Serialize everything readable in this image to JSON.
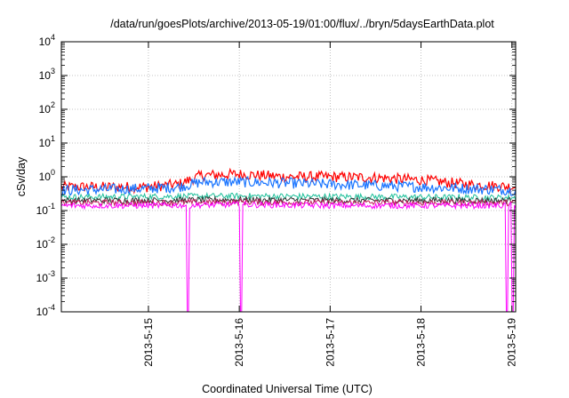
{
  "chart_data": {
    "type": "line",
    "title": "/data/run/goesPlots/archive/2013-05-19/01:00/flux/../bryn/5daysEarthData.plot",
    "xlabel": "Coordinated Universal Time (UTC)",
    "ylabel": "cSv/day",
    "yscale": "log",
    "ylim": [
      0.0001,
      10000
    ],
    "xlim": [
      "2013-05-14T01:00",
      "2013-05-19T01:00"
    ],
    "y_ticks": [
      {
        "value": 0.0001,
        "base": "10",
        "exp": "-4"
      },
      {
        "value": 0.001,
        "base": "10",
        "exp": "-3"
      },
      {
        "value": 0.01,
        "base": "10",
        "exp": "-2"
      },
      {
        "value": 0.1,
        "base": "10",
        "exp": "-1"
      },
      {
        "value": 1,
        "base": "10",
        "exp": "0"
      },
      {
        "value": 10,
        "base": "10",
        "exp": "1"
      },
      {
        "value": 100,
        "base": "10",
        "exp": "2"
      },
      {
        "value": 1000,
        "base": "10",
        "exp": "3"
      },
      {
        "value": 10000,
        "base": "10",
        "exp": "4"
      }
    ],
    "x_ticks": [
      {
        "label": "2013-5-15",
        "value": "2013-05-15T00:00"
      },
      {
        "label": "2013-5-16",
        "value": "2013-05-16T00:00"
      },
      {
        "label": "2013-5-17",
        "value": "2013-05-17T00:00"
      },
      {
        "label": "2013-5-18",
        "value": "2013-05-18T00:00"
      },
      {
        "label": "2013-5-19",
        "value": "2013-05-19T00:00"
      }
    ],
    "grid": true,
    "series": [
      {
        "color": "#ff0000",
        "x": [
          "2013-05-14T01:00",
          "2013-05-14T12:00",
          "2013-05-15T00:00",
          "2013-05-15T08:00",
          "2013-05-15T14:00",
          "2013-05-16T00:00",
          "2013-05-16T12:00",
          "2013-05-17T00:00",
          "2013-05-17T12:00",
          "2013-05-18T00:00",
          "2013-05-18T12:00",
          "2013-05-19T01:00"
        ],
        "values": [
          0.5,
          0.5,
          0.5,
          0.6,
          1.1,
          1.2,
          1.0,
          1.0,
          0.95,
          0.8,
          0.6,
          0.5
        ]
      },
      {
        "color": "#1a75ff",
        "x": [
          "2013-05-14T01:00",
          "2013-05-14T12:00",
          "2013-05-15T00:00",
          "2013-05-15T08:00",
          "2013-05-15T14:00",
          "2013-05-16T00:00",
          "2013-05-16T12:00",
          "2013-05-17T00:00",
          "2013-05-17T12:00",
          "2013-05-18T00:00",
          "2013-05-18T12:00",
          "2013-05-19T01:00"
        ],
        "values": [
          0.4,
          0.42,
          0.45,
          0.5,
          0.7,
          0.7,
          0.65,
          0.6,
          0.55,
          0.5,
          0.45,
          0.4
        ]
      },
      {
        "color": "#1dbf99",
        "x": [
          "2013-05-14T01:00",
          "2013-05-15T00:00",
          "2013-05-16T00:00",
          "2013-05-17T00:00",
          "2013-05-18T00:00",
          "2013-05-19T01:00"
        ],
        "values": [
          0.25,
          0.26,
          0.27,
          0.26,
          0.25,
          0.24
        ]
      },
      {
        "color": "#333333",
        "x": [
          "2013-05-14T01:00",
          "2013-05-15T00:00",
          "2013-05-16T00:00",
          "2013-05-17T00:00",
          "2013-05-18T00:00",
          "2013-05-19T01:00"
        ],
        "values": [
          0.2,
          0.2,
          0.21,
          0.2,
          0.2,
          0.2
        ]
      },
      {
        "color": "#c2185b",
        "x": [
          "2013-05-14T01:00",
          "2013-05-15T00:00",
          "2013-05-16T00:00",
          "2013-05-17T00:00",
          "2013-05-18T00:00",
          "2013-05-19T01:00"
        ],
        "values": [
          0.17,
          0.17,
          0.18,
          0.17,
          0.17,
          0.17
        ]
      },
      {
        "color": "#ff00ff",
        "x": [
          "2013-05-14T01:00",
          "2013-05-15T00:00",
          "2013-05-16T00:00",
          "2013-05-17T00:00",
          "2013-05-18T00:00",
          "2013-05-19T01:00"
        ],
        "values": [
          0.14,
          0.14,
          0.15,
          0.14,
          0.14,
          0.14
        ],
        "dropouts": [
          "2013-05-15T10:30",
          "2013-05-16T00:30",
          "2013-05-18T22:40",
          "2013-05-19T00:10"
        ]
      }
    ]
  }
}
